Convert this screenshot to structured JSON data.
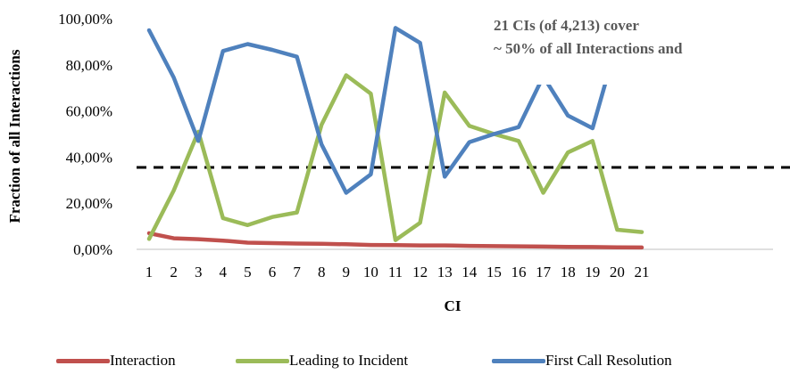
{
  "chart_data": {
    "type": "line",
    "title": "",
    "xlabel": "CI",
    "ylabel": "Fraction of all Interactions",
    "categories": [
      "1",
      "2",
      "3",
      "4",
      "5",
      "6",
      "7",
      "8",
      "9",
      "10",
      "11",
      "12",
      "13",
      "14",
      "15",
      "16",
      "17",
      "18",
      "19",
      "20",
      "21"
    ],
    "y_ticks": [
      "0,00%",
      "20,00%",
      "40,00%",
      "60,00%",
      "80,00%",
      "100,00%"
    ],
    "ylim": [
      0,
      100
    ],
    "reference_line": {
      "y": 35.5,
      "style": "dashed",
      "color": "#000000"
    },
    "annotation_lines": [
      "21 CIs (of 4,213) cover",
      "~ 50% of all Interactions and"
    ],
    "legend_position": "bottom",
    "grid": false,
    "series": [
      {
        "name": "Interaction",
        "color": "#c0504d",
        "values": [
          7.0,
          4.8,
          4.4,
          3.8,
          2.9,
          2.7,
          2.5,
          2.4,
          2.2,
          1.9,
          1.8,
          1.7,
          1.7,
          1.5,
          1.4,
          1.3,
          1.2,
          1.1,
          1.0,
          0.9,
          0.8
        ]
      },
      {
        "name": "Leading to Incident",
        "color": "#9bbb59",
        "values": [
          4.5,
          25.5,
          51.0,
          13.5,
          10.5,
          14.0,
          16.0,
          54.0,
          75.5,
          67.5,
          4.0,
          11.5,
          68.0,
          53.5,
          50.0,
          47.0,
          24.5,
          42.0,
          47.0,
          8.5,
          7.5
        ]
      },
      {
        "name": "First Call Resolution",
        "color": "#4f81bd",
        "values": [
          95.0,
          74.5,
          47.0,
          86.0,
          89.0,
          86.5,
          83.5,
          45.5,
          24.5,
          32.5,
          96.0,
          89.5,
          31.5,
          46.5,
          50.0,
          53.0,
          75.0,
          58.0,
          52.5,
          90.0,
          91.0
        ]
      }
    ]
  },
  "legend": {
    "items": [
      "Interaction",
      "Leading to Incident",
      "First Call Resolution"
    ],
    "colors": [
      "#c0504d",
      "#9bbb59",
      "#4f81bd"
    ]
  }
}
